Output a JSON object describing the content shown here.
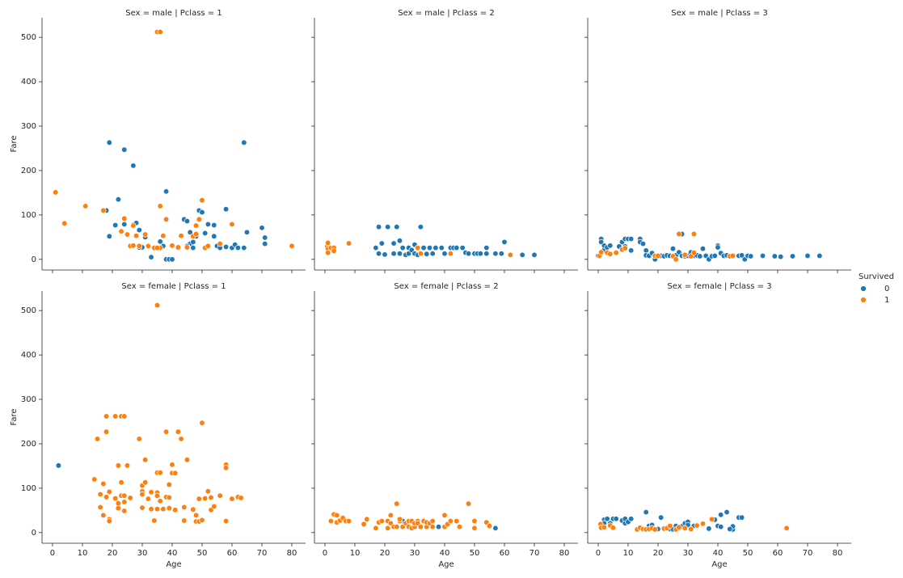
{
  "axes": {
    "xlabel": "Age",
    "ylabel": "Fare",
    "xlim": [
      -3.5,
      84.6
    ],
    "ylim": [
      -24,
      544
    ],
    "xticks": [
      0,
      10,
      20,
      30,
      40,
      50,
      60,
      70,
      80
    ],
    "yticks": [
      0,
      100,
      200,
      300,
      400,
      500
    ]
  },
  "legend": {
    "title": "Survived",
    "labels": [
      "0",
      "1"
    ],
    "colors": [
      "#1f77b4",
      "#ff7f0e"
    ]
  },
  "chart_data": [
    {
      "type": "scatter",
      "title": "Sex = male | Pclass = 1",
      "series": [
        {
          "x": [
            19,
            24,
            27,
            64,
            38,
            22,
            18,
            19,
            21,
            24,
            27,
            28,
            29,
            31,
            30,
            33,
            36,
            36,
            37,
            38,
            39,
            40,
            42,
            44,
            45,
            46,
            46,
            47,
            47,
            48,
            49,
            50,
            51,
            52,
            54,
            54,
            55,
            56,
            58,
            58,
            60,
            61,
            62,
            64,
            65,
            70,
            71,
            71,
            29,
            45
          ],
          "values": [
            263,
            247,
            211,
            263,
            153,
            135,
            110,
            52,
            77,
            79,
            78,
            82,
            66,
            50,
            27,
            5,
            26,
            40,
            30,
            0,
            0,
            0,
            27,
            90,
            86,
            61,
            35,
            39,
            26,
            52,
            110,
            106,
            59,
            79,
            77,
            52,
            30,
            26,
            113,
            28,
            26,
            33,
            26,
            26,
            61,
            71,
            49,
            35,
            27,
            30
          ]
        },
        {
          "x": [
            1,
            4,
            11,
            17,
            24,
            23,
            25,
            26,
            27,
            28,
            29,
            31,
            32,
            34,
            35,
            36,
            36,
            36,
            38,
            37,
            40,
            42,
            43,
            45,
            47,
            48,
            48,
            49,
            50,
            51,
            52,
            56,
            60,
            80,
            35,
            27
          ],
          "values": [
            151,
            81,
            120,
            110,
            92,
            63,
            56,
            30,
            31,
            53,
            30,
            56,
            30,
            26,
            512,
            512,
            120,
            26,
            90,
            53,
            31,
            27,
            53,
            27,
            52,
            76,
            57,
            90,
            133,
            26,
            30,
            35,
            79,
            30,
            26,
            76
          ]
        }
      ]
    },
    {
      "type": "scatter",
      "title": "Sex = male | Pclass = 2",
      "series": [
        {
          "x": [
            17,
            18,
            18,
            19,
            20,
            21,
            23,
            24,
            25,
            25,
            26,
            27,
            28,
            28,
            29,
            30,
            30,
            31,
            32,
            32,
            33,
            34,
            35,
            36,
            37,
            39,
            40,
            42,
            43,
            44,
            46,
            47,
            48,
            50,
            51,
            52,
            54,
            54,
            57,
            59,
            60,
            62,
            66,
            70,
            23,
            31
          ],
          "values": [
            26,
            13,
            73,
            36,
            11,
            73,
            13,
            73,
            13,
            42,
            26,
            10,
            13,
            26,
            21,
            13,
            33,
            26,
            73,
            13,
            26,
            12,
            26,
            13,
            26,
            26,
            13,
            26,
            26,
            26,
            26,
            15,
            13,
            13,
            13,
            13,
            26,
            13,
            13,
            13,
            39,
            10,
            10,
            10,
            36,
            10
          ]
        },
        {
          "x": [
            0.8,
            1,
            1,
            1,
            2,
            3,
            3,
            8,
            31,
            32,
            42,
            62
          ],
          "values": [
            29,
            23,
            37,
            15,
            26,
            26,
            19,
            36,
            26,
            13,
            13,
            10
          ]
        }
      ]
    },
    {
      "type": "scatter",
      "title": "Sex = male | Pclass = 3",
      "series": [
        {
          "x": [
            0,
            1,
            1,
            2,
            2,
            3,
            4,
            7,
            8,
            9,
            9,
            10,
            11,
            11,
            14,
            14,
            15,
            16,
            16,
            17,
            18,
            19,
            19,
            20,
            21,
            22,
            23,
            24,
            25,
            25,
            26,
            27,
            28,
            28,
            29,
            30,
            31,
            32,
            33,
            34,
            35,
            36,
            37,
            38,
            39,
            40,
            40,
            41,
            42,
            43,
            44,
            45,
            47,
            48,
            49,
            50,
            51,
            55,
            59,
            61,
            65,
            70,
            74
          ],
          "values": [
            8,
            46,
            39,
            21,
            31,
            27,
            31,
            29,
            39,
            46,
            29,
            46,
            46,
            20,
            46,
            39,
            35,
            20,
            9,
            8,
            14,
            8,
            0,
            9,
            8,
            7,
            9,
            8,
            24,
            7,
            9,
            16,
            57,
            8,
            7,
            8,
            16,
            8,
            9,
            7,
            24,
            8,
            0,
            7,
            8,
            31,
            27,
            14,
            8,
            9,
            7,
            7,
            8,
            9,
            0,
            8,
            7,
            8,
            7,
            6,
            7,
            8,
            8
          ]
        },
        {
          "x": [
            0.4,
            1,
            3,
            4,
            6,
            8,
            9,
            19,
            25,
            26,
            27,
            32,
            31,
            32,
            44,
            45,
            20,
            29
          ],
          "values": [
            8,
            16,
            15,
            12,
            15,
            22,
            25,
            8,
            7,
            0,
            57,
            57,
            7,
            15,
            7,
            8,
            8,
            10
          ]
        }
      ]
    },
    {
      "type": "scatter",
      "title": "Sex = female | Pclass = 1",
      "series": [
        {
          "x": [
            2,
            25,
            50
          ],
          "values": [
            151,
            151,
            28
          ]
        },
        {
          "x": [
            14,
            15,
            16,
            16,
            17,
            17,
            18,
            18,
            18,
            19,
            19,
            19,
            21,
            21,
            22,
            22,
            22,
            23,
            23,
            23,
            24,
            24,
            24,
            24,
            25,
            26,
            29,
            30,
            30,
            30,
            30,
            31,
            31,
            32,
            33,
            33,
            34,
            35,
            35,
            35,
            35,
            35,
            36,
            36,
            37,
            38,
            38,
            39,
            39,
            39,
            40,
            40,
            41,
            41,
            42,
            43,
            44,
            44,
            45,
            47,
            48,
            48,
            49,
            49,
            50,
            50,
            51,
            52,
            53,
            53,
            54,
            56,
            58,
            58,
            58,
            60,
            62,
            63
          ],
          "values": [
            120,
            211,
            86,
            57,
            110,
            39,
            227,
            262,
            80,
            92,
            30,
            26,
            262,
            77,
            151,
            66,
            55,
            262,
            83,
            113,
            262,
            83,
            69,
            49,
            151,
            78,
            211,
            106,
            93,
            86,
            56,
            164,
            113,
            76,
            91,
            53,
            27,
            135,
            90,
            83,
            512,
            53,
            135,
            71,
            53,
            227,
            80,
            108,
            55,
            79,
            153,
            134,
            134,
            51,
            227,
            211,
            27,
            57,
            164,
            52,
            39,
            25,
            76,
            25,
            247,
            28,
            77,
            93,
            79,
            51,
            59,
            83,
            153,
            146,
            26,
            76,
            80,
            78
          ]
        }
      ]
    },
    {
      "type": "scatter",
      "title": "Sex = female | Pclass = 2",
      "series": [
        {
          "x": [
            24,
            26,
            27,
            28,
            36,
            38,
            44,
            57
          ],
          "values": [
            13,
            26,
            21,
            13,
            13,
            13,
            26,
            10
          ]
        },
        {
          "x": [
            2,
            3,
            4,
            4,
            5,
            6,
            7,
            8,
            13,
            14,
            17,
            18,
            19,
            21,
            21,
            22,
            22,
            23,
            24,
            24,
            25,
            25,
            26,
            27,
            28,
            28,
            29,
            29,
            30,
            30,
            31,
            31,
            32,
            33,
            34,
            34,
            35,
            36,
            36,
            40,
            40,
            41,
            42,
            44,
            45,
            48,
            50,
            50,
            54,
            55
          ],
          "values": [
            26,
            41,
            23,
            39,
            27,
            33,
            26,
            26,
            19,
            30,
            10,
            23,
            26,
            10,
            26,
            39,
            21,
            13,
            65,
            13,
            26,
            30,
            13,
            21,
            26,
            13,
            26,
            10,
            13,
            21,
            26,
            21,
            13,
            26,
            13,
            23,
            21,
            26,
            13,
            39,
            13,
            19,
            26,
            26,
            13,
            65,
            26,
            10,
            23,
            15
          ]
        }
      ]
    },
    {
      "type": "scatter",
      "title": "Sex = female | Pclass = 3",
      "series": [
        {
          "x": [
            2,
            2,
            3,
            4,
            5,
            6,
            8,
            9,
            9,
            10,
            11,
            14,
            16,
            17,
            18,
            18,
            20,
            21,
            22,
            24,
            25,
            26,
            27,
            28,
            29,
            30,
            30,
            31,
            32,
            37,
            39,
            40,
            41,
            41,
            43,
            45,
            45,
            47,
            48,
            44
          ],
          "values": [
            29,
            21,
            31,
            21,
            31,
            31,
            27,
            21,
            31,
            24,
            31,
            11,
            46,
            15,
            9,
            17,
            8,
            34,
            10,
            8,
            7,
            15,
            10,
            14,
            21,
            24,
            17,
            8,
            15,
            9,
            29,
            15,
            40,
            13,
            46,
            7,
            14,
            34,
            34,
            8
          ]
        },
        {
          "x": [
            0.8,
            1,
            2,
            4,
            5,
            13,
            14,
            15,
            16,
            17,
            18,
            19,
            22,
            23,
            24,
            26,
            27,
            29,
            31,
            33,
            35,
            38,
            63
          ],
          "values": [
            19,
            11,
            12,
            16,
            11,
            7,
            11,
            8,
            7,
            8,
            10,
            7,
            9,
            10,
            15,
            7,
            12,
            10,
            8,
            16,
            20,
            30,
            10
          ]
        }
      ]
    }
  ]
}
